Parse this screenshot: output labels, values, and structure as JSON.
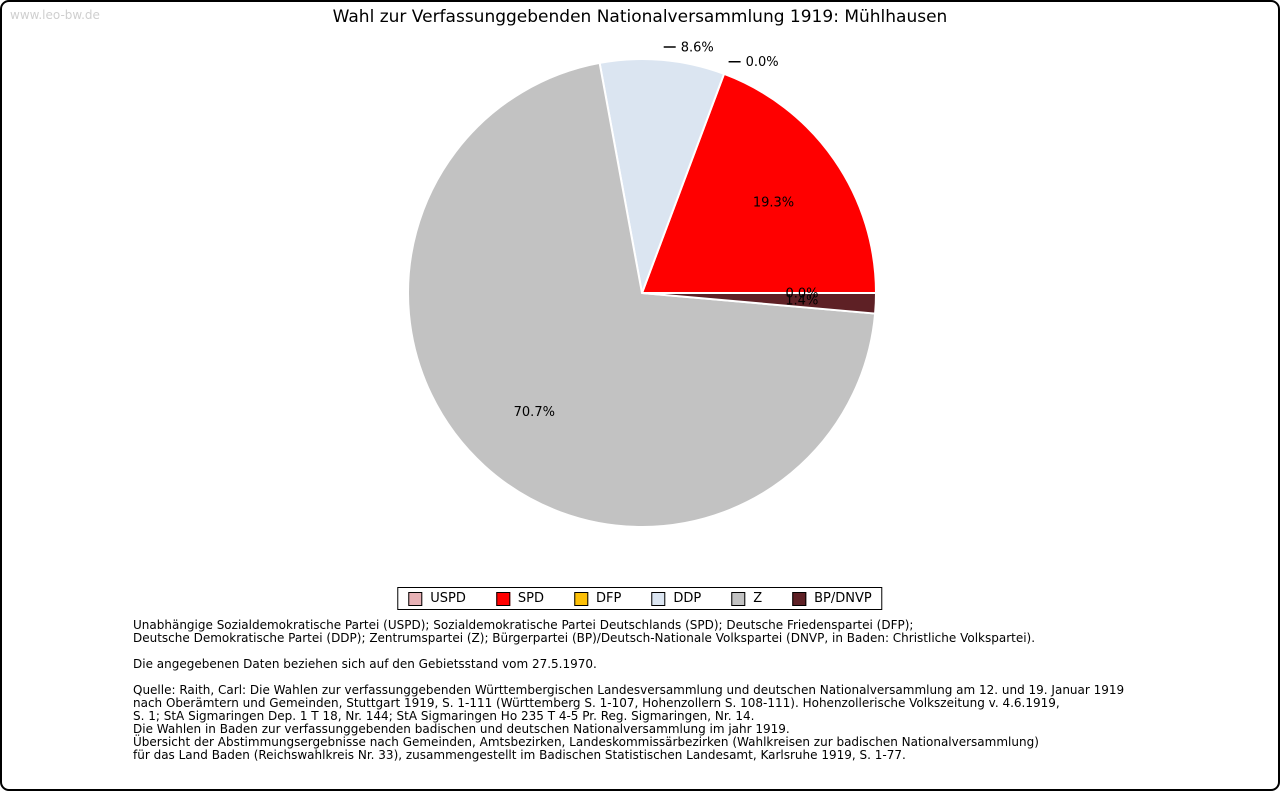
{
  "watermark": "www.leo-bw.de",
  "chart_data": {
    "type": "pie",
    "title": "Wahl zur Verfassunggebenden Nationalversammlung 1919: Mühlhausen",
    "unit": "percent",
    "legend_position": "bottom",
    "start_angle_deg": 0,
    "direction": "counterclockwise",
    "legend": [
      {
        "label": "USPD",
        "color": "#e7b1b5"
      },
      {
        "label": "SPD",
        "color": "#ff0000"
      },
      {
        "label": "DFP",
        "color": "#fdc006"
      },
      {
        "label": "DDP",
        "color": "#dbe5f1"
      },
      {
        "label": "Z",
        "color": "#c2c2c2"
      },
      {
        "label": "BP/DNVP",
        "color": "#5e2025"
      }
    ],
    "slices": [
      {
        "party": "SPD",
        "value_pct": 19.3,
        "label": "19.3%",
        "color": "#ff0000",
        "label_placement": "inside"
      },
      {
        "party": "USPD",
        "value_pct": 0.0,
        "label": "0.0%",
        "color": "#e7b1b5",
        "label_placement": "outside"
      },
      {
        "party": "DDP",
        "value_pct": 8.6,
        "label": "8.6%",
        "color": "#dbe5f1",
        "label_placement": "outside"
      },
      {
        "party": "Z",
        "value_pct": 70.7,
        "label": "70.7%",
        "color": "#c2c2c2",
        "label_placement": "inside"
      },
      {
        "party": "BP/DNVP",
        "value_pct": 1.4,
        "label": "1.4%",
        "color": "#5e2025",
        "label_placement": "inside"
      },
      {
        "party": "DFP",
        "value_pct": 0.0,
        "label": "0.0%",
        "color": "#fdc006",
        "label_placement": "inside"
      }
    ]
  },
  "footnotes": {
    "parties_line1": "Unabhängige Sozialdemokratische Partei (USPD); Sozialdemokratische Partei Deutschlands (SPD); Deutsche Friedenspartei (DFP);",
    "parties_line2": "Deutsche Demokratische Partei (DDP); Zentrumspartei (Z); Bürgerpartei (BP)/Deutsch-Nationale Volkspartei (DNVP, in Baden: Christliche Volkspartei).",
    "gebietsstand": "Die angegebenen Daten beziehen sich auf den Gebietsstand vom 27.5.1970.",
    "quelle_line1": "Quelle: Raith, Carl: Die Wahlen zur verfassunggebenden Württembergischen Landesversammlung und deutschen Nationalversammlung am 12. und 19. Januar 1919",
    "quelle_line2": "nach Oberämtern und Gemeinden, Stuttgart 1919, S. 1-111 (Württemberg S. 1-107, Hohenzollern S. 108-111). Hohenzollerische Volkszeitung v. 4.6.1919,",
    "quelle_line3": "S. 1; StA Sigmaringen Dep. 1 T 18, Nr. 144; StA Sigmaringen Ho 235 T 4-5 Pr. Reg. Sigmaringen, Nr. 14.",
    "quelle_line4": "Die Wahlen in Baden zur verfassunggebenden badischen und deutschen Nationalversammlung im jahr 1919.",
    "quelle_line5": "Übersicht der Abstimmungsergebnisse nach Gemeinden, Amtsbezirken, Landeskommissärbezirken (Wahlkreisen zur badischen Nationalversammlung)",
    "quelle_line6": "für das Land Baden (Reichswahlkreis Nr. 33), zusammengestellt im Badischen Statistischen Landesamt, Karlsruhe 1919, S. 1-77."
  }
}
